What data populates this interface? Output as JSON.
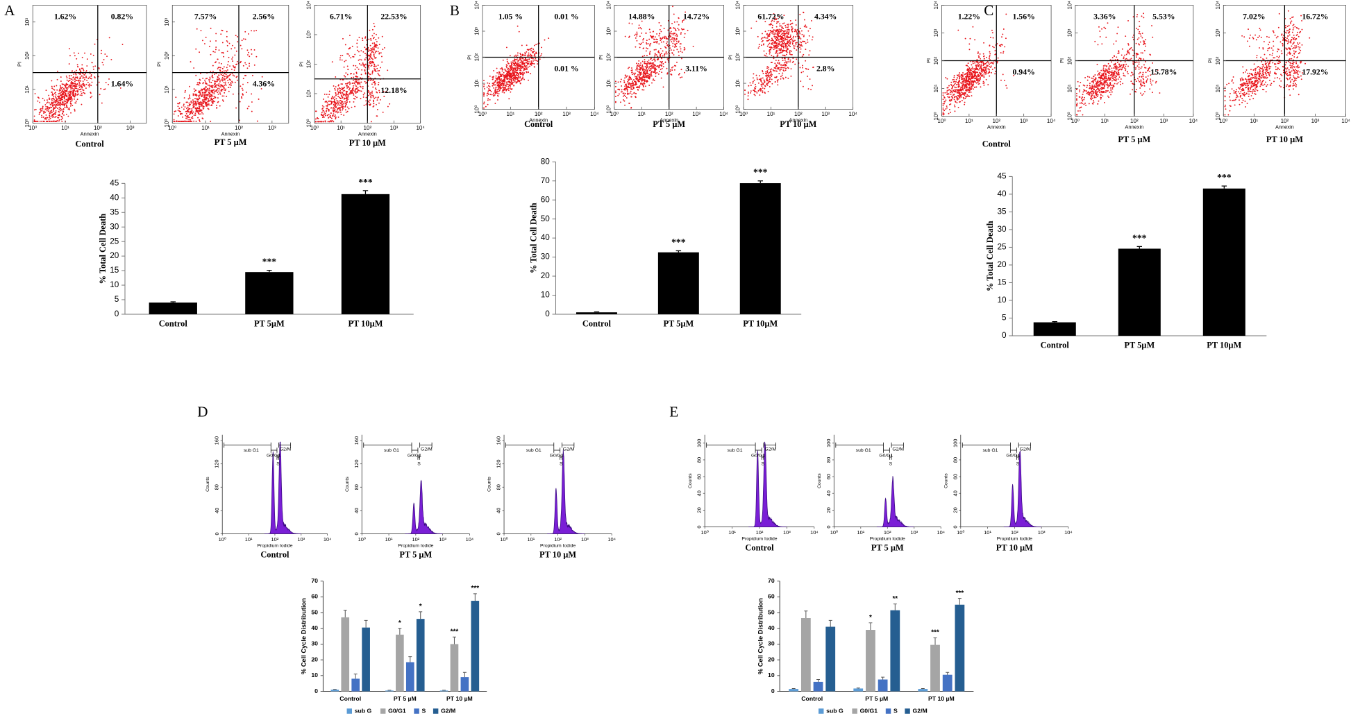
{
  "panel_labels": [
    "A",
    "B",
    "C",
    "D",
    "E"
  ],
  "chart_data": [
    {
      "type": "flow",
      "title": "Control",
      "xlabel": "Annexin",
      "ylabel": "PI",
      "quadrant_labels": [
        "1.62%",
        "0.82%",
        "1.64%"
      ],
      "gate_x": 2,
      "gate_y": 1.5,
      "color": "#e8141b",
      "xlim": [
        0,
        3.5
      ],
      "ylim": [
        0,
        3.5
      ],
      "xticks": [
        {
          "value": 0,
          "label": "10⁰"
        },
        {
          "value": 1,
          "label": "10¹"
        },
        {
          "value": 2,
          "label": "10²"
        },
        {
          "value": 3,
          "label": "10³"
        }
      ],
      "yticks": [
        {
          "value": 0,
          "label": "10⁰"
        },
        {
          "value": 1,
          "label": "10¹"
        },
        {
          "value": 2,
          "label": "10²"
        },
        {
          "value": 3,
          "label": "10³"
        }
      ]
    },
    {
      "type": "flow",
      "title": "PT 5 µM",
      "xlabel": "Annexin",
      "ylabel": "PI",
      "quadrant_labels": [
        "7.57%",
        "2.56%",
        "4.36%"
      ],
      "gate_x": 2,
      "gate_y": 1.5,
      "color": "#e8141b",
      "xlim": [
        0,
        3.5
      ],
      "ylim": [
        0,
        3.5
      ],
      "xticks": [
        {
          "value": 0,
          "label": "10⁰"
        },
        {
          "value": 1,
          "label": "10¹"
        },
        {
          "value": 2,
          "label": "10²"
        },
        {
          "value": 3,
          "label": "10³"
        }
      ],
      "yticks": [
        {
          "value": 0,
          "label": "10⁰"
        },
        {
          "value": 1,
          "label": "10¹"
        },
        {
          "value": 2,
          "label": "10²"
        },
        {
          "value": 3,
          "label": "10³"
        }
      ]
    },
    {
      "type": "flow",
      "title": "PT 10 µM",
      "xlabel": "Annexin",
      "ylabel": "PI",
      "quadrant_labels": [
        "6.71%",
        "22.53%",
        "12.18%"
      ],
      "gate_x": 2,
      "gate_y": 1.5,
      "color": "#e8141b",
      "xlim": [
        0,
        4
      ],
      "ylim": [
        0,
        4
      ],
      "xticks": [
        {
          "value": 0,
          "label": "10⁰"
        },
        {
          "value": 1,
          "label": "10¹"
        },
        {
          "value": 2,
          "label": "10²"
        },
        {
          "value": 3,
          "label": "10³"
        },
        {
          "value": 4,
          "label": "10⁴"
        }
      ],
      "yticks": [
        {
          "value": 0,
          "label": "10⁰"
        },
        {
          "value": 1,
          "label": "10¹"
        },
        {
          "value": 2,
          "label": "10²"
        },
        {
          "value": 3,
          "label": "10³"
        },
        {
          "value": 4,
          "label": "10⁴"
        }
      ]
    },
    {
      "type": "bar",
      "ylabel": "% Total Cell Death",
      "categories": [
        "Control",
        "PT 5µM",
        "PT 10µM"
      ],
      "values": [
        4,
        14.5,
        41.3
      ],
      "errors": [
        0.3,
        0.6,
        1.2
      ],
      "annotations": [
        null,
        "***",
        "***"
      ],
      "color": "#000000",
      "ylim": [
        0,
        45
      ],
      "yticks": [
        0,
        5,
        10,
        15,
        20,
        25,
        30,
        35,
        40,
        45
      ]
    },
    {
      "type": "flow",
      "title": "Control",
      "xlabel": "Annexin",
      "ylabel": "PI",
      "quadrant_labels": [
        "1.05 %",
        "0.01 %",
        "0.01 %"
      ],
      "gate_x": 2,
      "gate_y": 2,
      "color": "#e8141b",
      "xlim": [
        0,
        4
      ],
      "ylim": [
        0,
        4
      ],
      "xticks": [
        {
          "value": 0,
          "label": "10⁰"
        },
        {
          "value": 1,
          "label": "10¹"
        },
        {
          "value": 2,
          "label": "10²"
        },
        {
          "value": 3,
          "label": "10³"
        },
        {
          "value": 4,
          "label": "10⁴"
        }
      ],
      "yticks": [
        {
          "value": 0,
          "label": "10⁰"
        },
        {
          "value": 1,
          "label": "10¹"
        },
        {
          "value": 2,
          "label": "10²"
        },
        {
          "value": 3,
          "label": "10³"
        },
        {
          "value": 4,
          "label": "10⁴"
        }
      ]
    },
    {
      "type": "flow",
      "title": "PT 5 µM",
      "xlabel": "Annexin",
      "ylabel": "PI",
      "quadrant_labels": [
        "14.88%",
        "14.72%",
        "3.11%"
      ],
      "gate_x": 2,
      "gate_y": 2,
      "color": "#e8141b",
      "xlim": [
        0,
        4
      ],
      "ylim": [
        0,
        4
      ],
      "xticks": [
        {
          "value": 0,
          "label": "10⁰"
        },
        {
          "value": 1,
          "label": "10¹"
        },
        {
          "value": 2,
          "label": "10²"
        },
        {
          "value": 3,
          "label": "10³"
        },
        {
          "value": 4,
          "label": "10⁴"
        }
      ],
      "yticks": [
        {
          "value": 0,
          "label": "10⁰"
        },
        {
          "value": 1,
          "label": "10¹"
        },
        {
          "value": 2,
          "label": "10²"
        },
        {
          "value": 3,
          "label": "10³"
        },
        {
          "value": 4,
          "label": "10⁴"
        }
      ]
    },
    {
      "type": "flow",
      "title": "PT 10 µM",
      "xlabel": "Annexin",
      "ylabel": "PI",
      "quadrant_labels": [
        "61.72%",
        "4.34%",
        "2.8%"
      ],
      "gate_x": 2,
      "gate_y": 2,
      "color": "#e8141b",
      "xlim": [
        0,
        4
      ],
      "ylim": [
        0,
        4
      ],
      "xticks": [
        {
          "value": 0,
          "label": "10⁰"
        },
        {
          "value": 1,
          "label": "10¹"
        },
        {
          "value": 2,
          "label": "10²"
        },
        {
          "value": 3,
          "label": "10³"
        },
        {
          "value": 4,
          "label": "10⁴"
        }
      ],
      "yticks": [
        {
          "value": 0,
          "label": "10⁰"
        },
        {
          "value": 1,
          "label": "10¹"
        },
        {
          "value": 2,
          "label": "10²"
        },
        {
          "value": 3,
          "label": "10³"
        },
        {
          "value": 4,
          "label": "10⁴"
        }
      ]
    },
    {
      "type": "bar",
      "ylabel": "% Total Cell Death",
      "categories": [
        "Control",
        "PT 5µM",
        "PT 10µM"
      ],
      "values": [
        1,
        32.5,
        68.8
      ],
      "errors": [
        0.2,
        0.8,
        1.2
      ],
      "annotations": [
        null,
        "***",
        "***"
      ],
      "color": "#000000",
      "ylim": [
        0,
        80
      ],
      "yticks": [
        0,
        10,
        20,
        30,
        40,
        50,
        60,
        70,
        80
      ]
    },
    {
      "type": "flow",
      "title": "Control",
      "xlabel": "Annexin",
      "ylabel": "PI",
      "quadrant_labels": [
        "1.22%",
        "1.56%",
        "0.94%"
      ],
      "gate_x": 2,
      "gate_y": 2,
      "color": "#e8141b",
      "xlim": [
        0,
        4
      ],
      "ylim": [
        0,
        4
      ],
      "xticks": [
        {
          "value": 0,
          "label": "10⁰"
        },
        {
          "value": 1,
          "label": "10¹"
        },
        {
          "value": 2,
          "label": "10²"
        },
        {
          "value": 3,
          "label": "10³"
        },
        {
          "value": 4,
          "label": "10⁴"
        }
      ],
      "yticks": [
        {
          "value": 0,
          "label": "10⁰"
        },
        {
          "value": 1,
          "label": "10¹"
        },
        {
          "value": 2,
          "label": "10²"
        },
        {
          "value": 3,
          "label": "10³"
        },
        {
          "value": 4,
          "label": "10⁴"
        }
      ]
    },
    {
      "type": "flow",
      "title": "PT 5 µM",
      "xlabel": "Annexin",
      "ylabel": "PI",
      "quadrant_labels": [
        "3.36%",
        "5.53%",
        "15.78%"
      ],
      "gate_x": 2,
      "gate_y": 2,
      "color": "#e8141b",
      "xlim": [
        0,
        4
      ],
      "ylim": [
        0,
        4
      ],
      "xticks": [
        {
          "value": 0,
          "label": "10⁰"
        },
        {
          "value": 1,
          "label": "10¹"
        },
        {
          "value": 2,
          "label": "10²"
        },
        {
          "value": 3,
          "label": "10³"
        },
        {
          "value": 4,
          "label": "10⁴"
        }
      ],
      "yticks": [
        {
          "value": 0,
          "label": "10⁰"
        },
        {
          "value": 1,
          "label": "10¹"
        },
        {
          "value": 2,
          "label": "10²"
        },
        {
          "value": 3,
          "label": "10³"
        },
        {
          "value": 4,
          "label": "10⁴"
        }
      ]
    },
    {
      "type": "flow",
      "title": "PT 10 µM",
      "xlabel": "Annexin",
      "ylabel": "PI",
      "quadrant_labels": [
        "7.02%",
        "16.72%",
        "17.92%"
      ],
      "gate_x": 2,
      "gate_y": 2,
      "color": "#e8141b",
      "xlim": [
        0,
        4
      ],
      "ylim": [
        0,
        4
      ],
      "xticks": [
        {
          "value": 0,
          "label": "10⁰"
        },
        {
          "value": 1,
          "label": "10¹"
        },
        {
          "value": 2,
          "label": "10²"
        },
        {
          "value": 3,
          "label": "10³"
        },
        {
          "value": 4,
          "label": "10⁴"
        }
      ],
      "yticks": [
        {
          "value": 0,
          "label": "10⁰"
        },
        {
          "value": 1,
          "label": "10¹"
        },
        {
          "value": 2,
          "label": "10²"
        },
        {
          "value": 3,
          "label": "10³"
        },
        {
          "value": 4,
          "label": "10⁴"
        }
      ]
    },
    {
      "type": "bar",
      "ylabel": "% Total Cell Death",
      "categories": [
        "Control",
        "PT 5µM",
        "PT 10µM"
      ],
      "values": [
        3.8,
        24.6,
        41.6
      ],
      "errors": [
        0.2,
        0.6,
        0.7
      ],
      "annotations": [
        null,
        "***",
        "***"
      ],
      "color": "#000000",
      "ylim": [
        0,
        45
      ],
      "yticks": [
        0,
        5,
        10,
        15,
        20,
        25,
        30,
        35,
        40,
        45
      ]
    },
    {
      "type": "cell_cycle",
      "title": "Control",
      "xlabel": "Propidium Iodide",
      "ylabel": "Counts",
      "gates": [
        "sub G1",
        "G0/G1",
        "S",
        "G2/M"
      ],
      "color": "#7a1fd6",
      "xlim": [
        0,
        4
      ],
      "ylim": [
        0,
        170
      ],
      "xticks": [
        {
          "value": 0,
          "label": "10⁰"
        },
        {
          "value": 1,
          "label": "10¹"
        },
        {
          "value": 2,
          "label": "10²"
        },
        {
          "value": 3,
          "label": "10³"
        },
        {
          "value": 4,
          "label": "10⁴"
        }
      ],
      "yticks": [
        0,
        40,
        80,
        120,
        160
      ]
    },
    {
      "type": "cell_cycle",
      "title": "PT 5 µM",
      "xlabel": "Propidium Iodide",
      "ylabel": "Counts",
      "gates": [
        "sub G1",
        "G0/G1",
        "S",
        "G2/M"
      ],
      "color": "#7a1fd6",
      "xlim": [
        0,
        4
      ],
      "ylim": [
        0,
        170
      ],
      "xticks": [
        {
          "value": 0,
          "label": "10⁰"
        },
        {
          "value": 1,
          "label": "10¹"
        },
        {
          "value": 2,
          "label": "10²"
        },
        {
          "value": 3,
          "label": "10³"
        },
        {
          "value": 4,
          "label": "10⁴"
        }
      ],
      "yticks": [
        0,
        40,
        80,
        120,
        160
      ]
    },
    {
      "type": "cell_cycle",
      "title": "PT 10 µM",
      "xlabel": "Propidium Iodide",
      "ylabel": "Counts",
      "gates": [
        "sub G1",
        "G0/G1",
        "S",
        "G2/M"
      ],
      "color": "#7a1fd6",
      "xlim": [
        0,
        4
      ],
      "ylim": [
        0,
        170
      ],
      "xticks": [
        {
          "value": 0,
          "label": "10⁰"
        },
        {
          "value": 1,
          "label": "10¹"
        },
        {
          "value": 2,
          "label": "10²"
        },
        {
          "value": 3,
          "label": "10³"
        },
        {
          "value": 4,
          "label": "10⁴"
        }
      ],
      "yticks": [
        0,
        40,
        80,
        120,
        160
      ]
    },
    {
      "type": "grouped_bar",
      "ylabel": "% Cell Cycle Distribution",
      "categories": [
        "Control",
        "PT 5 µM",
        "PT 10 µM"
      ],
      "ylim": [
        0,
        70
      ],
      "yticks": [
        0,
        10,
        20,
        30,
        40,
        50,
        60,
        70
      ],
      "legend": "bottom",
      "series": [
        {
          "name": "sub G",
          "color": "#5b9bd5",
          "values": [
            1,
            0.5,
            0.5
          ],
          "errors": [
            0.3,
            0.2,
            0.2
          ],
          "annotations": [
            null,
            null,
            null
          ]
        },
        {
          "name": "G0/G1",
          "color": "#a5a5a5",
          "values": [
            47,
            36,
            30
          ],
          "errors": [
            4.5,
            4,
            4.5
          ],
          "annotations": [
            null,
            "*",
            "***"
          ]
        },
        {
          "name": "S",
          "color": "#4472c4",
          "values": [
            8,
            18.5,
            9
          ],
          "errors": [
            3,
            3.5,
            3
          ]
        },
        {
          "name": "G2/M",
          "color": "#255e91",
          "values": [
            40.5,
            46,
            57.5
          ],
          "errors": [
            4.5,
            4.5,
            4.5
          ],
          "annotations": [
            null,
            "*",
            "***"
          ]
        }
      ]
    },
    {
      "type": "cell_cycle",
      "title": "Control",
      "xlabel": "Propidium Iodide",
      "ylabel": "Counts",
      "gates": [
        "sub G1",
        "G0/G1",
        "S",
        "G2/M"
      ],
      "color": "#7a1fd6",
      "xlim": [
        0,
        4
      ],
      "ylim": [
        0,
        110
      ],
      "xticks": [
        {
          "value": 0,
          "label": "10⁰"
        },
        {
          "value": 1,
          "label": "10¹"
        },
        {
          "value": 2,
          "label": "10²"
        },
        {
          "value": 3,
          "label": "10³"
        },
        {
          "value": 4,
          "label": "10⁴"
        }
      ],
      "yticks": [
        0,
        20,
        40,
        60,
        80,
        100
      ]
    },
    {
      "type": "cell_cycle",
      "title": "PT 5 µM",
      "xlabel": "Propidium Iodide",
      "ylabel": "Counts",
      "gates": [
        "sub G1",
        "G0/G1",
        "S",
        "G2/M"
      ],
      "color": "#7a1fd6",
      "xlim": [
        0,
        4
      ],
      "ylim": [
        0,
        110
      ],
      "xticks": [
        {
          "value": 0,
          "label": "10⁰"
        },
        {
          "value": 1,
          "label": "10¹"
        },
        {
          "value": 2,
          "label": "10²"
        },
        {
          "value": 3,
          "label": "10³"
        },
        {
          "value": 4,
          "label": "10⁴"
        }
      ],
      "yticks": [
        0,
        20,
        40,
        60,
        80,
        100
      ]
    },
    {
      "type": "cell_cycle",
      "title": "PT 10 µM",
      "xlabel": "Propidium Iodide",
      "ylabel": "Counts",
      "gates": [
        "sub G1",
        "G0/G1",
        "S",
        "G2/M"
      ],
      "color": "#7a1fd6",
      "xlim": [
        0,
        4
      ],
      "ylim": [
        0,
        110
      ],
      "xticks": [
        {
          "value": 0,
          "label": "10⁰"
        },
        {
          "value": 1,
          "label": "10¹"
        },
        {
          "value": 2,
          "label": "10²"
        },
        {
          "value": 3,
          "label": "10³"
        },
        {
          "value": 4,
          "label": "10⁴"
        }
      ],
      "yticks": [
        0,
        20,
        40,
        60,
        80,
        100
      ]
    },
    {
      "type": "grouped_bar",
      "ylabel": "% Cell Cycle Distribution",
      "categories": [
        "Control",
        "PT 5 µM",
        "PT 10 µM"
      ],
      "ylim": [
        0,
        70
      ],
      "yticks": [
        0,
        10,
        20,
        30,
        40,
        50,
        60,
        70
      ],
      "legend": "bottom",
      "series": [
        {
          "name": "sub G",
          "color": "#5b9bd5",
          "values": [
            1.5,
            1.8,
            1.5
          ],
          "errors": [
            0.3,
            0.3,
            0.3
          ],
          "annotations": [
            null,
            null,
            null
          ]
        },
        {
          "name": "G0/G1",
          "color": "#a5a5a5",
          "values": [
            46.5,
            39,
            29.5
          ],
          "errors": [
            4.5,
            4.5,
            4.5
          ],
          "annotations": [
            null,
            "*",
            "***"
          ]
        },
        {
          "name": "S",
          "color": "#4472c4",
          "values": [
            6,
            7.5,
            10.5
          ],
          "errors": [
            1.5,
            1.5,
            1.5
          ]
        },
        {
          "name": "G2/M",
          "color": "#255e91",
          "values": [
            41,
            51.5,
            55
          ],
          "errors": [
            4,
            4,
            4
          ],
          "annotations": [
            null,
            "**",
            "***"
          ]
        }
      ]
    }
  ]
}
